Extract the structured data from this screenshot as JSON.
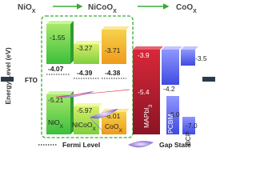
{
  "header": {
    "materials": [
      {
        "name": "NiO",
        "sub": "X"
      },
      {
        "name": "NiCoO",
        "sub": "X"
      },
      {
        "name": "CoO",
        "sub": "X"
      }
    ]
  },
  "y_axis_label": "Energy Level (eV)",
  "electrode": "FTO",
  "htl_layers": [
    {
      "top": "-1.55",
      "bottom": "-5.21",
      "fermi": "-4.07",
      "name": "NiO",
      "sub": "X"
    },
    {
      "top": "-3.27",
      "bottom": "-5.97",
      "fermi": "-4.39",
      "name": "NiCoO",
      "sub": "X"
    },
    {
      "top": "-3.71",
      "bottom": "-6.01",
      "fermi": "-4.38",
      "name": "CoO",
      "sub": "X"
    }
  ],
  "other_layers": [
    {
      "top": "-3.9",
      "bottom": "-5.4",
      "name": "MAPbI",
      "sub": "3"
    },
    {
      "top": "-4.2",
      "bottom": "-6.0",
      "name": "PCBM"
    },
    {
      "top": "-3.5",
      "bottom": "-7.0",
      "name": "BCP"
    }
  ],
  "legend": {
    "fermi": "Fermi Level",
    "gap": "Gap State"
  }
}
